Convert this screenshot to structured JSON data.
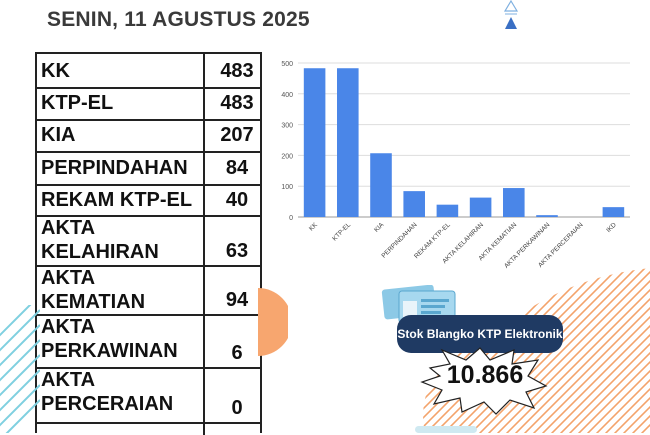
{
  "header": {
    "date_title": "SENIN, 11 AGUSTUS 2025"
  },
  "table": {
    "rows": [
      {
        "label_lines": [
          "KK"
        ],
        "value": "483"
      },
      {
        "label_lines": [
          "KTP-EL"
        ],
        "value": "483"
      },
      {
        "label_lines": [
          "KIA"
        ],
        "value": "207"
      },
      {
        "label_lines": [
          "PERPINDAHAN"
        ],
        "value": "84"
      },
      {
        "label_lines": [
          "REKAM KTP-EL"
        ],
        "value": "40"
      },
      {
        "label_lines": [
          "AKTA",
          "KELAHIRAN"
        ],
        "value": "63"
      },
      {
        "label_lines": [
          "AKTA",
          "KEMATIAN"
        ],
        "value": "94"
      },
      {
        "label_lines": [
          "AKTA",
          "PERKAWINAN"
        ],
        "value": "6"
      },
      {
        "label_lines": [
          "AKTA",
          "PERCERAIAN"
        ],
        "value": "0"
      }
    ]
  },
  "chart_data": {
    "type": "bar",
    "categories": [
      "KK",
      "KTP-EL",
      "KIA",
      "PERPINDAHAN",
      "REKAM KTP-EL",
      "AKTA KELAHIRAN",
      "AKTA KEMATIAN",
      "AKTA PERKAWINAN",
      "AKTA PERCERAIAN",
      "IKD"
    ],
    "values": [
      483,
      483,
      207,
      84,
      40,
      63,
      94,
      6,
      0,
      32
    ],
    "ylim": [
      0,
      500
    ],
    "yticks": [
      0,
      100,
      200,
      300,
      400,
      500
    ],
    "grid": true,
    "bar_color": "#4a86e8"
  },
  "stock": {
    "badge_label": "Stok Blangko KTP Elektronik",
    "value": "10.866"
  },
  "colors": {
    "badge_bg": "#1f3a63",
    "stripe_orange": "#f3a36b",
    "stripe_teal": "#7fd0e0",
    "accent_blue": "#3a6fc4"
  }
}
